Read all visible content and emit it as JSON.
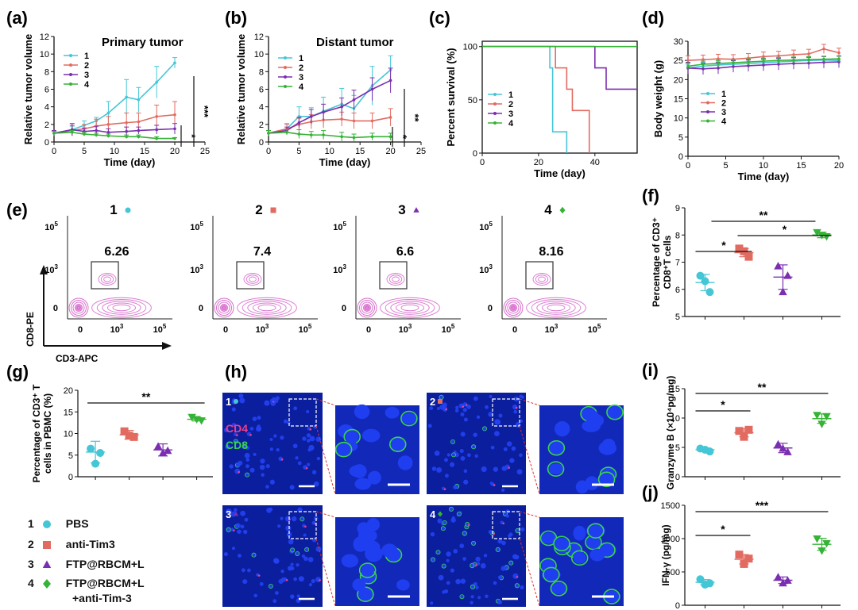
{
  "colors": {
    "g1": "#45c6d6",
    "g2": "#e26b61",
    "g3": "#7b2fb0",
    "g4": "#36b336",
    "flow": "#d45fc7",
    "nucleus": "#1b2fd6",
    "cd4": "#ee3e86",
    "cd8": "#39d24a"
  },
  "panel_letters": {
    "a": "(a)",
    "b": "(b)",
    "c": "(c)",
    "d": "(d)",
    "e": "(e)",
    "f": "(f)",
    "g": "(g)",
    "h": "(h)",
    "i": "(i)",
    "j": "(j)"
  },
  "group_labels": [
    "1",
    "2",
    "3",
    "4"
  ],
  "legend": [
    {
      "num": "1",
      "name": "PBS",
      "marker": "circle",
      "color": "#45c6d6"
    },
    {
      "num": "2",
      "name": "anti-Tim3",
      "marker": "square",
      "color": "#e26b61"
    },
    {
      "num": "3",
      "name": "FTP@RBCM+L",
      "marker": "triangle-up",
      "color": "#7b2fb0"
    },
    {
      "num": "4",
      "name": "FTP@RBCM+L",
      "name2": "+anti-Tim-3",
      "marker": "diamond",
      "color": "#36b336"
    }
  ],
  "flow": {
    "xlabel": "CD3-APC",
    "ylabel": "CD8-PE",
    "ticks_y": [
      {
        "m": "10",
        "e": "5"
      },
      {
        "m": "10",
        "e": "3"
      },
      {
        "m": "0",
        "e": ""
      }
    ],
    "ticks_x": [
      {
        "m": "0",
        "e": ""
      },
      {
        "m": "10",
        "e": "3"
      },
      {
        "m": "10",
        "e": "5"
      }
    ],
    "panels": [
      {
        "group": "1",
        "value": "6.26"
      },
      {
        "group": "2",
        "value": "7.4"
      },
      {
        "group": "3",
        "value": "6.6"
      },
      {
        "group": "4",
        "value": "8.16"
      }
    ]
  },
  "micro": {
    "cd4_label": "CD4",
    "cd8_label": "CD8",
    "tiles": [
      "1",
      "2",
      "3",
      "4"
    ]
  },
  "chart_data": [
    {
      "id": "a",
      "type": "line",
      "title": "Primary tumor",
      "xlabel": "Time (day)",
      "ylabel": "Relative tumor volume",
      "xlim": [
        0,
        25
      ],
      "ylim": [
        0,
        12
      ],
      "xticks": [
        0,
        5,
        10,
        15,
        20,
        25
      ],
      "yticks": [
        0,
        2,
        4,
        6,
        8,
        10,
        12
      ],
      "x": [
        0,
        3,
        5,
        7,
        9,
        12,
        14,
        17,
        20
      ],
      "series": [
        {
          "name": "1",
          "values": [
            1.0,
            1.4,
            1.9,
            2.4,
            3.3,
            5.1,
            4.8,
            6.8,
            9.0
          ],
          "err": [
            0.3,
            0.4,
            0.5,
            0.4,
            1.3,
            2.0,
            1.4,
            1.8,
            0.6
          ]
        },
        {
          "name": "2",
          "values": [
            1.0,
            1.3,
            1.5,
            1.8,
            2.0,
            2.2,
            2.3,
            2.9,
            3.1
          ],
          "err": [
            0.3,
            0.6,
            0.5,
            0.8,
            0.9,
            1.1,
            1.0,
            1.3,
            1.5
          ]
        },
        {
          "name": "3",
          "values": [
            1.0,
            1.4,
            1.2,
            1.3,
            1.1,
            1.2,
            1.3,
            1.4,
            1.5
          ],
          "err": [
            0.3,
            0.7,
            0.4,
            0.5,
            0.4,
            0.5,
            0.4,
            0.5,
            0.6
          ]
        },
        {
          "name": "4",
          "values": [
            1.0,
            1.1,
            0.9,
            0.8,
            0.7,
            0.6,
            0.6,
            0.4,
            0.4
          ],
          "err": [
            0.2,
            0.2,
            0.2,
            0.2,
            0.2,
            0.2,
            0.2,
            0.2,
            0.1
          ]
        }
      ],
      "sig": [
        "*",
        "***"
      ]
    },
    {
      "id": "b",
      "type": "line",
      "title": "Distant tumor",
      "xlabel": "Time (day)",
      "ylabel": "Relative tumor volume",
      "xlim": [
        0,
        25
      ],
      "ylim": [
        0,
        12
      ],
      "xticks": [
        0,
        5,
        10,
        15,
        20,
        25
      ],
      "yticks": [
        0,
        2,
        4,
        6,
        8,
        10,
        12
      ],
      "x": [
        0,
        3,
        5,
        7,
        9,
        12,
        14,
        17,
        20
      ],
      "series": [
        {
          "name": "1",
          "values": [
            1.0,
            1.5,
            2.9,
            2.9,
            3.5,
            4.3,
            3.8,
            6.4,
            8.2
          ],
          "err": [
            0.3,
            0.6,
            1.1,
            1.0,
            1.6,
            1.8,
            1.5,
            2.2,
            1.6
          ]
        },
        {
          "name": "2",
          "values": [
            1.0,
            1.5,
            2.0,
            2.3,
            2.5,
            2.6,
            2.4,
            2.4,
            2.8
          ],
          "err": [
            0.3,
            0.5,
            0.7,
            0.8,
            0.9,
            0.8,
            0.9,
            0.9,
            1.0
          ]
        },
        {
          "name": "3",
          "values": [
            1.0,
            1.3,
            2.2,
            2.9,
            3.4,
            4.0,
            4.8,
            6.0,
            7.0
          ],
          "err": [
            0.3,
            0.4,
            0.6,
            0.8,
            0.9,
            1.0,
            1.1,
            1.3,
            1.4
          ]
        },
        {
          "name": "4",
          "values": [
            1.0,
            1.1,
            0.9,
            0.8,
            0.8,
            0.6,
            0.5,
            0.6,
            0.6
          ],
          "err": [
            0.3,
            0.3,
            0.5,
            0.4,
            0.5,
            0.5,
            0.4,
            0.4,
            0.4
          ]
        }
      ],
      "sig": [
        "*",
        "**"
      ]
    },
    {
      "id": "c",
      "type": "line",
      "xlabel": "Time (day)",
      "ylabel": "Percent survival (%)",
      "xlim": [
        0,
        55
      ],
      "ylim": [
        0,
        105
      ],
      "xticks": [
        0,
        20,
        40
      ],
      "yticks": [
        0,
        50,
        100
      ],
      "series": [
        {
          "name": "1",
          "points": [
            [
              0,
              100
            ],
            [
              24,
              100
            ],
            [
              24,
              80
            ],
            [
              25,
              80
            ],
            [
              25,
              20
            ],
            [
              30,
              20
            ],
            [
              30,
              0
            ]
          ]
        },
        {
          "name": "2",
          "points": [
            [
              0,
              100
            ],
            [
              26,
              100
            ],
            [
              26,
              80
            ],
            [
              30,
              80
            ],
            [
              30,
              60
            ],
            [
              32,
              60
            ],
            [
              32,
              40
            ],
            [
              38,
              40
            ],
            [
              38,
              0
            ]
          ]
        },
        {
          "name": "3",
          "points": [
            [
              0,
              100
            ],
            [
              40,
              100
            ],
            [
              40,
              80
            ],
            [
              44,
              80
            ],
            [
              44,
              60
            ],
            [
              55,
              60
            ]
          ]
        },
        {
          "name": "4",
          "points": [
            [
              0,
              100
            ],
            [
              55,
              100
            ]
          ]
        }
      ]
    },
    {
      "id": "d",
      "type": "line",
      "xlabel": "Time (day)",
      "ylabel": "Body weight (g)",
      "xlim": [
        0,
        20
      ],
      "ylim": [
        0,
        30
      ],
      "xticks": [
        0,
        5,
        10,
        15,
        20
      ],
      "yticks": [
        0,
        5,
        10,
        15,
        20,
        25,
        30
      ],
      "x": [
        0,
        2,
        4,
        6,
        8,
        10,
        12,
        14,
        16,
        18,
        20
      ],
      "series": [
        {
          "name": "1",
          "values": [
            23.0,
            23.5,
            23.8,
            24.0,
            24.2,
            24.4,
            24.6,
            24.8,
            25.0,
            25.1,
            25.0
          ],
          "err": [
            1.0,
            1.0,
            1.0,
            1.0,
            1.0,
            1.0,
            1.0,
            1.0,
            1.0,
            1.0,
            1.2
          ]
        },
        {
          "name": "2",
          "values": [
            25.0,
            25.2,
            25.4,
            25.3,
            25.6,
            26.0,
            26.2,
            26.5,
            26.7,
            28.0,
            27.0
          ],
          "err": [
            1.2,
            1.2,
            1.2,
            1.2,
            1.2,
            1.2,
            1.2,
            1.2,
            1.2,
            1.2,
            1.2
          ]
        },
        {
          "name": "3",
          "values": [
            23.0,
            22.8,
            23.0,
            23.4,
            23.6,
            23.8,
            24.0,
            24.2,
            24.3,
            24.5,
            24.6
          ],
          "err": [
            1.5,
            1.5,
            1.5,
            1.5,
            1.5,
            1.5,
            1.5,
            1.5,
            1.5,
            1.5,
            1.5
          ]
        },
        {
          "name": "4",
          "values": [
            23.5,
            24.0,
            24.2,
            24.4,
            24.6,
            24.8,
            25.0,
            25.1,
            25.2,
            25.3,
            25.4
          ],
          "err": [
            0.8,
            0.8,
            0.8,
            0.8,
            0.8,
            0.8,
            0.8,
            0.8,
            0.8,
            0.8,
            0.8
          ]
        }
      ]
    },
    {
      "id": "f",
      "type": "scatter",
      "ylabel": "Percentage of CD3⁺ CD8⁺T cells",
      "ylim": [
        5,
        9
      ],
      "yticks": [
        5,
        6,
        7,
        8,
        9
      ],
      "groups": [
        {
          "name": "1",
          "points": [
            6.5,
            5.9,
            6.3
          ],
          "mean": 6.25,
          "sd": 0.3
        },
        {
          "name": "2",
          "points": [
            7.5,
            7.2,
            7.4
          ],
          "mean": 7.35,
          "sd": 0.15
        },
        {
          "name": "3",
          "points": [
            6.85,
            6.5,
            5.9
          ],
          "mean": 6.45,
          "sd": 0.45
        },
        {
          "name": "4",
          "points": [
            8.1,
            7.95,
            8.0
          ],
          "mean": 8.0,
          "sd": 0.1
        }
      ],
      "sig": [
        {
          "from": 1,
          "to": 2,
          "label": "*"
        },
        {
          "from": 2,
          "to": 4,
          "label": "*"
        },
        {
          "from": 1,
          "to": 4,
          "label": "**"
        }
      ]
    },
    {
      "id": "g",
      "type": "scatter",
      "ylabel": "Percentage of CD3⁺ T cells in PBMC (%)",
      "ylim": [
        0,
        20
      ],
      "yticks": [
        0,
        5,
        10,
        15,
        20
      ],
      "groups": [
        {
          "name": "1",
          "points": [
            6.5,
            5.5,
            3.0
          ],
          "mean": 5.7,
          "sd": 2.5
        },
        {
          "name": "2",
          "points": [
            10.5,
            9.2,
            9.5
          ],
          "mean": 9.7,
          "sd": 1.0
        },
        {
          "name": "3",
          "points": [
            7.0,
            6.0,
            5.5
          ],
          "mean": 6.2,
          "sd": 1.4
        },
        {
          "name": "4",
          "points": [
            13.8,
            13.0,
            13.3
          ],
          "mean": 13.3,
          "sd": 0.4
        }
      ],
      "sig": [
        {
          "from": 1,
          "to": 4,
          "label": "**"
        }
      ]
    },
    {
      "id": "i",
      "type": "scatter",
      "ylabel": "Granzyme B (×10⁴pg/mg)",
      "ylim": [
        0,
        15
      ],
      "yticks": [
        0,
        5,
        10,
        15
      ],
      "groups": [
        {
          "name": "1",
          "points": [
            4.8,
            4.3,
            4.6
          ],
          "mean": 4.6,
          "sd": 0.3
        },
        {
          "name": "2",
          "points": [
            7.8,
            8.0,
            6.8
          ],
          "mean": 7.5,
          "sd": 0.7
        },
        {
          "name": "3",
          "points": [
            5.5,
            4.2,
            4.8
          ],
          "mean": 4.9,
          "sd": 0.8
        },
        {
          "name": "4",
          "points": [
            10.5,
            10.3,
            9.0
          ],
          "mean": 9.9,
          "sd": 0.8
        }
      ],
      "sig": [
        {
          "from": 1,
          "to": 2,
          "label": "*"
        },
        {
          "from": 1,
          "to": 4,
          "label": "**"
        }
      ]
    },
    {
      "id": "j",
      "type": "scatter",
      "ylabel": "IFN-γ (pg/mg)",
      "ylim": [
        0,
        1500
      ],
      "yticks": [
        0,
        500,
        1000,
        1500
      ],
      "groups": [
        {
          "name": "1",
          "points": [
            390,
            330,
            310
          ],
          "mean": 345,
          "sd": 40
        },
        {
          "name": "2",
          "points": [
            760,
            700,
            620
          ],
          "mean": 690,
          "sd": 70
        },
        {
          "name": "3",
          "points": [
            420,
            370,
            330
          ],
          "mean": 375,
          "sd": 50
        },
        {
          "name": "4",
          "points": [
            1000,
            930,
            820
          ],
          "mean": 915,
          "sd": 90
        }
      ],
      "sig": [
        {
          "from": 1,
          "to": 2,
          "label": "*"
        },
        {
          "from": 1,
          "to": 4,
          "label": "***"
        }
      ]
    }
  ]
}
